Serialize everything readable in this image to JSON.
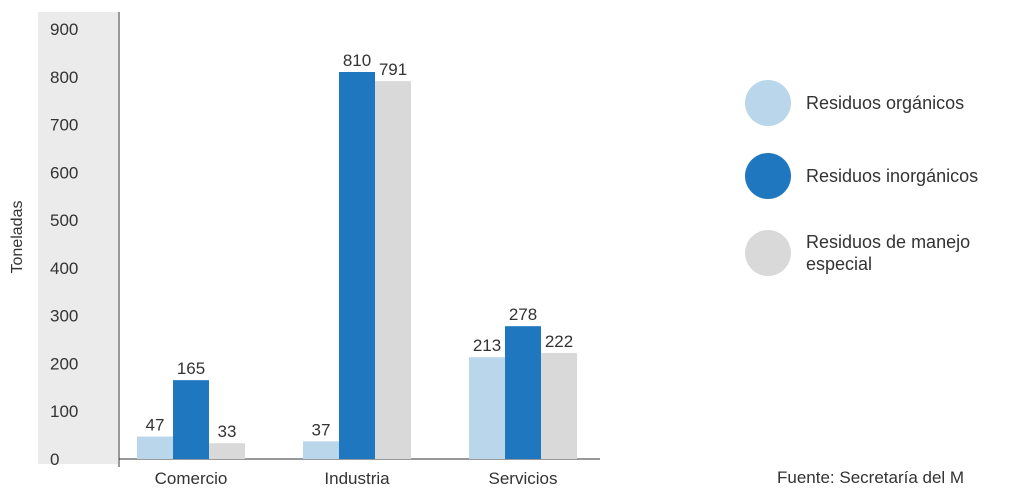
{
  "chart_data": {
    "type": "bar",
    "title": "",
    "xlabel": "",
    "ylabel": "Toneladas",
    "ylim": [
      0,
      900
    ],
    "yticks": [
      0,
      100,
      200,
      300,
      400,
      500,
      600,
      700,
      800,
      900
    ],
    "categories": [
      "Comercio",
      "Industria",
      "Servicios"
    ],
    "series": [
      {
        "name": "Residuos orgánicos",
        "color": "#bad6eb",
        "values": [
          47,
          37,
          213
        ]
      },
      {
        "name": "Residuos inorgánicos",
        "color": "#1f77bf",
        "values": [
          165,
          810,
          278
        ]
      },
      {
        "name": "Residuos de manejo especial",
        "color": "#d9d9d9",
        "values": [
          33,
          791,
          222
        ]
      }
    ],
    "legend_position": "right",
    "grid": false
  },
  "legend": {
    "items": [
      {
        "label": "Residuos orgánicos",
        "color": "#bad6eb"
      },
      {
        "label": "Residuos inorgánicos",
        "color": "#1f77bf"
      },
      {
        "label": "Residuos de manejo especial",
        "color": "#d9d9d9"
      }
    ]
  },
  "source": "Fuente: Secretaría del M"
}
